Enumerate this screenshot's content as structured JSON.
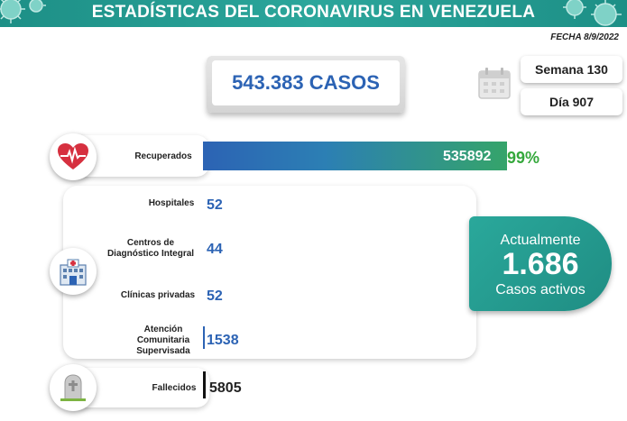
{
  "header": {
    "title": "ESTADÍSTICAS DEL CORONAVIRUS EN VENEZUELA"
  },
  "date": "FECHA 8/9/2022",
  "cases": {
    "total": "543.383 CASOS"
  },
  "calendar": {
    "week": "Semana 130",
    "day": "Día 907"
  },
  "recovered": {
    "label": "Recuperados",
    "value": "535892",
    "percent": "99%",
    "share": 0.99
  },
  "facilities": [
    {
      "label": "Hospitales",
      "value": "52"
    },
    {
      "label": "Centros de Diagnóstico Integral",
      "value": "44"
    },
    {
      "label": "Clínicas privadas",
      "value": "52"
    },
    {
      "label": "Atención Comunitaria Supervisada",
      "value": "1538"
    }
  ],
  "deceased": {
    "label": "Fallecidos",
    "value": "5805"
  },
  "active": {
    "top": "Actualmente",
    "value": "1.686",
    "bottom": "Casos activos"
  },
  "colors": {
    "banner": "#2ba69b",
    "blue": "#2c63b4",
    "green": "#35a83c",
    "active": "#2aa89b"
  }
}
